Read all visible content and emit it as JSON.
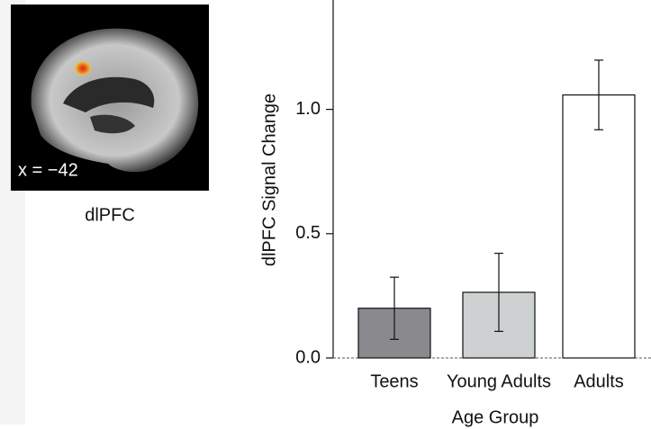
{
  "figure_panel": {
    "coordinate": "x = −42",
    "label": "dlPFC"
  },
  "chart_data": {
    "type": "bar",
    "x_label": "Age Group",
    "y_label": "dlPFC Signal Change",
    "categories": [
      "Teens",
      "Young Adults",
      "Adults"
    ],
    "values": [
      0.2,
      0.264,
      1.058
    ],
    "errors": [
      0.125,
      0.157,
      0.14
    ],
    "colors": [
      "#8a898e",
      "#cdd1d1",
      "#ffffff"
    ],
    "ylim": [
      0,
      1.44
    ],
    "yticks": [
      {
        "value": 0,
        "label": "0.0"
      },
      0.5,
      {
        "value": 1,
        "label": "1.0"
      }
    ]
  }
}
